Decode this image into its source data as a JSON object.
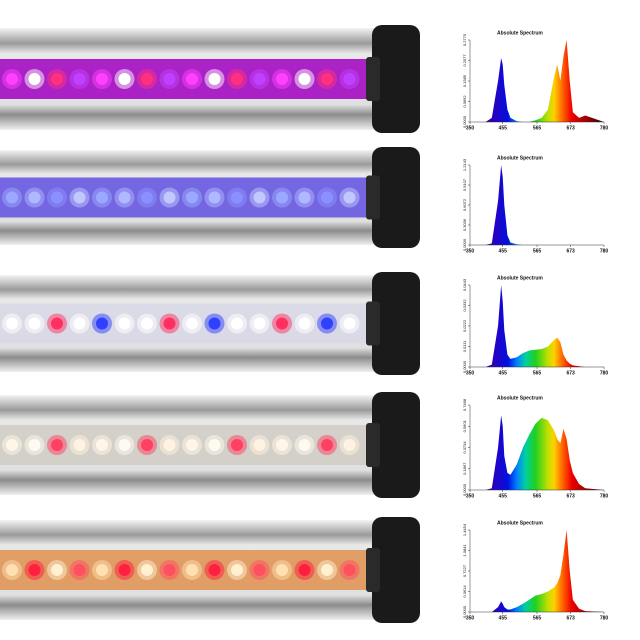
{
  "chart_data": [
    {
      "type": "area",
      "title": "Absolute Spectrum",
      "x": [
        380,
        400,
        420,
        440,
        450,
        455,
        460,
        470,
        480,
        500,
        520,
        540,
        560,
        580,
        600,
        620,
        630,
        640,
        650,
        660,
        670,
        680,
        700,
        720,
        780
      ],
      "values": [
        0,
        0,
        0.014,
        0.139,
        0.216,
        0.194,
        0.125,
        0.042,
        0.014,
        0.003,
        0,
        0,
        0.006,
        0.014,
        0.042,
        0.152,
        0.194,
        0.139,
        0.222,
        0.277,
        0.139,
        0.033,
        0.014,
        0.022,
        0
      ],
      "xlim": [
        350,
        780
      ],
      "xticks": [
        350,
        455,
        565,
        673,
        780
      ],
      "ylim": [
        0,
        0.277
      ],
      "yticks": [
        {
          "value": 0,
          "label": "0.0000"
        },
        0.0692,
        0.1385,
        0.2077,
        {
          "value": 0.277,
          "label": "0.2770"
        }
      ]
    },
    {
      "type": "area",
      "title": "Absolute Spectrum",
      "x": [
        380,
        400,
        420,
        440,
        450,
        455,
        460,
        470,
        480,
        500,
        520,
        540,
        560,
        580,
        600,
        620,
        630,
        640,
        650,
        660,
        670,
        680,
        700,
        720,
        780
      ],
      "values": [
        0,
        0,
        0.024,
        0.668,
        1.214,
        1.032,
        0.607,
        0.146,
        0.036,
        0.012,
        0,
        0,
        0,
        0,
        0,
        0,
        0,
        0,
        0,
        0,
        0,
        0,
        0,
        0,
        0
      ],
      "xlim": [
        350,
        780
      ],
      "xticks": [
        350,
        455,
        565,
        673,
        780
      ],
      "ylim": [
        0,
        1.2143
      ],
      "yticks": [
        {
          "value": 0,
          "label": "0.0000"
        },
        0.3036,
        0.6072,
        0.9107,
        1.2143
      ]
    },
    {
      "type": "area",
      "title": "Absolute Spectrum",
      "x": [
        380,
        400,
        420,
        440,
        450,
        455,
        460,
        470,
        480,
        500,
        520,
        540,
        560,
        580,
        600,
        620,
        630,
        640,
        650,
        660,
        670,
        680,
        700,
        720,
        780
      ],
      "values": [
        0,
        0,
        0.0013,
        0.0222,
        0.0443,
        0.0354,
        0.0199,
        0.0066,
        0.0044,
        0.0053,
        0.0075,
        0.0089,
        0.0093,
        0.0097,
        0.0111,
        0.0146,
        0.0159,
        0.0133,
        0.0066,
        0.0035,
        0.0018,
        0.0009,
        0.0004,
        0,
        0
      ],
      "xlim": [
        350,
        780
      ],
      "xticks": [
        350,
        455,
        565,
        673,
        780
      ],
      "ylim": [
        0,
        0.0443
      ],
      "yticks": [
        {
          "value": 0,
          "label": "0.0000"
        },
        0.0111,
        0.0222,
        0.0332,
        0.0443
      ]
    },
    {
      "type": "area",
      "title": "Absolute Spectrum",
      "x": [
        380,
        400,
        420,
        440,
        450,
        455,
        460,
        470,
        480,
        500,
        520,
        540,
        560,
        580,
        600,
        620,
        630,
        640,
        650,
        660,
        670,
        680,
        700,
        720,
        780
      ],
      "values": [
        0,
        0,
        0.0149,
        0.3734,
        0.6572,
        0.5601,
        0.2987,
        0.1494,
        0.1344,
        0.224,
        0.3734,
        0.4854,
        0.5825,
        0.6348,
        0.6124,
        0.5228,
        0.4481,
        0.4107,
        0.5377,
        0.4481,
        0.2614,
        0.1494,
        0.0523,
        0.0149,
        0
      ],
      "xlim": [
        350,
        780
      ],
      "xticks": [
        350,
        455,
        565,
        673,
        780
      ],
      "ylim": [
        0,
        0.7468
      ],
      "yticks": [
        {
          "value": 0,
          "label": "0.0000"
        },
        0.1867,
        0.3734,
        0.5601,
        0.7468
      ]
    },
    {
      "type": "area",
      "title": "Absolute Spectrum",
      "x": [
        380,
        400,
        420,
        440,
        450,
        455,
        460,
        470,
        480,
        500,
        520,
        540,
        560,
        580,
        600,
        620,
        630,
        640,
        650,
        660,
        670,
        680,
        700,
        720,
        780
      ],
      "values": [
        0,
        0,
        0,
        0.0867,
        0.1879,
        0.1445,
        0.0867,
        0.0434,
        0.0434,
        0.0867,
        0.1445,
        0.2168,
        0.2891,
        0.318,
        0.3614,
        0.4336,
        0.5059,
        0.6504,
        1.0118,
        1.4454,
        0.7227,
        0.2168,
        0.0578,
        0.0145,
        0
      ],
      "xlim": [
        350,
        780
      ],
      "xticks": [
        350,
        455,
        565,
        673,
        780
      ],
      "ylim": [
        0,
        1.4454
      ],
      "yticks": [
        {
          "value": 0,
          "label": "0.0000"
        },
        0.3614,
        0.7227,
        1.0841,
        1.4454
      ]
    }
  ]
}
